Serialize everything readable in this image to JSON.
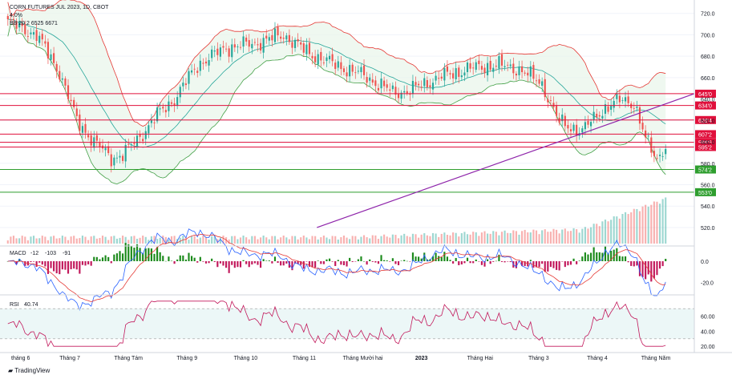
{
  "header": {
    "symbol_line": "CORN FUTURES JUL 2023, 1D, CBOT",
    "change_line": "4.0%",
    "bb_line": "BB 20 2 6525 6671"
  },
  "macd_legend": {
    "label": "MACD",
    "v1": "-12",
    "v2": "-103",
    "v3": "-91"
  },
  "rsi_legend": {
    "label": "RSI",
    "v1": "40.74"
  },
  "brand": "TradingView",
  "colors": {
    "bull": "#26a69a",
    "bear": "#ef5350",
    "resistance": "#e0103c",
    "support": "#2e9e2e",
    "trend": "#8e24aa",
    "bb_upper": "#e53935",
    "bb_lower": "#43a047",
    "bb_mid": "#26a69a",
    "bb_fill": "#e8f5e9",
    "macd_line": "#2962ff",
    "signal_line": "#e53935",
    "rsi_line": "#c2185b",
    "rsi_band": "#e0f2f1"
  },
  "chart_data": {
    "type": "candlestick",
    "price_axis": [
      "720.0",
      "700.0",
      "680.0",
      "660.0",
      "640.0",
      "620.0",
      "600.0",
      "580.0",
      "560.0",
      "540.0",
      "520.0"
    ],
    "ylim": [
      508,
      728
    ],
    "x_labels": [
      "tháng 6",
      "Tháng 7",
      "Tháng Tám",
      "Tháng 9",
      "Tháng 10",
      "Tháng 11",
      "Tháng Mười hai",
      "2023",
      "Tháng Hai",
      "Tháng 3",
      "Tháng 4",
      "Tháng Năm"
    ],
    "levels": [
      {
        "value": 645.0,
        "label": "645'0",
        "kind": "resistance"
      },
      {
        "value": 634.0,
        "label": "634'0",
        "kind": "resistance"
      },
      {
        "value": 620.4,
        "label": "620'4",
        "kind": "resistance"
      },
      {
        "value": 607.2,
        "label": "607'2",
        "kind": "resistance"
      },
      {
        "value": 599.6,
        "label": "599'6",
        "kind": "resistance"
      },
      {
        "value": 595.2,
        "label": "595'2",
        "kind": "resistance"
      },
      {
        "value": 574.2,
        "label": "574'2",
        "kind": "support"
      },
      {
        "value": 553.0,
        "label": "553'0",
        "kind": "support"
      }
    ],
    "trendline": {
      "from_index": 0.47,
      "to_index": 1.05,
      "from_value": 520,
      "to_value": 645
    },
    "macd_axis": [
      "0.0",
      "-20.0"
    ],
    "macd_ylim": [
      -30,
      12
    ],
    "rsi_axis": [
      "60.00",
      "40.00",
      "20.00"
    ],
    "rsi_ylim": [
      16,
      84
    ],
    "rsi_band": [
      30,
      70
    ]
  }
}
